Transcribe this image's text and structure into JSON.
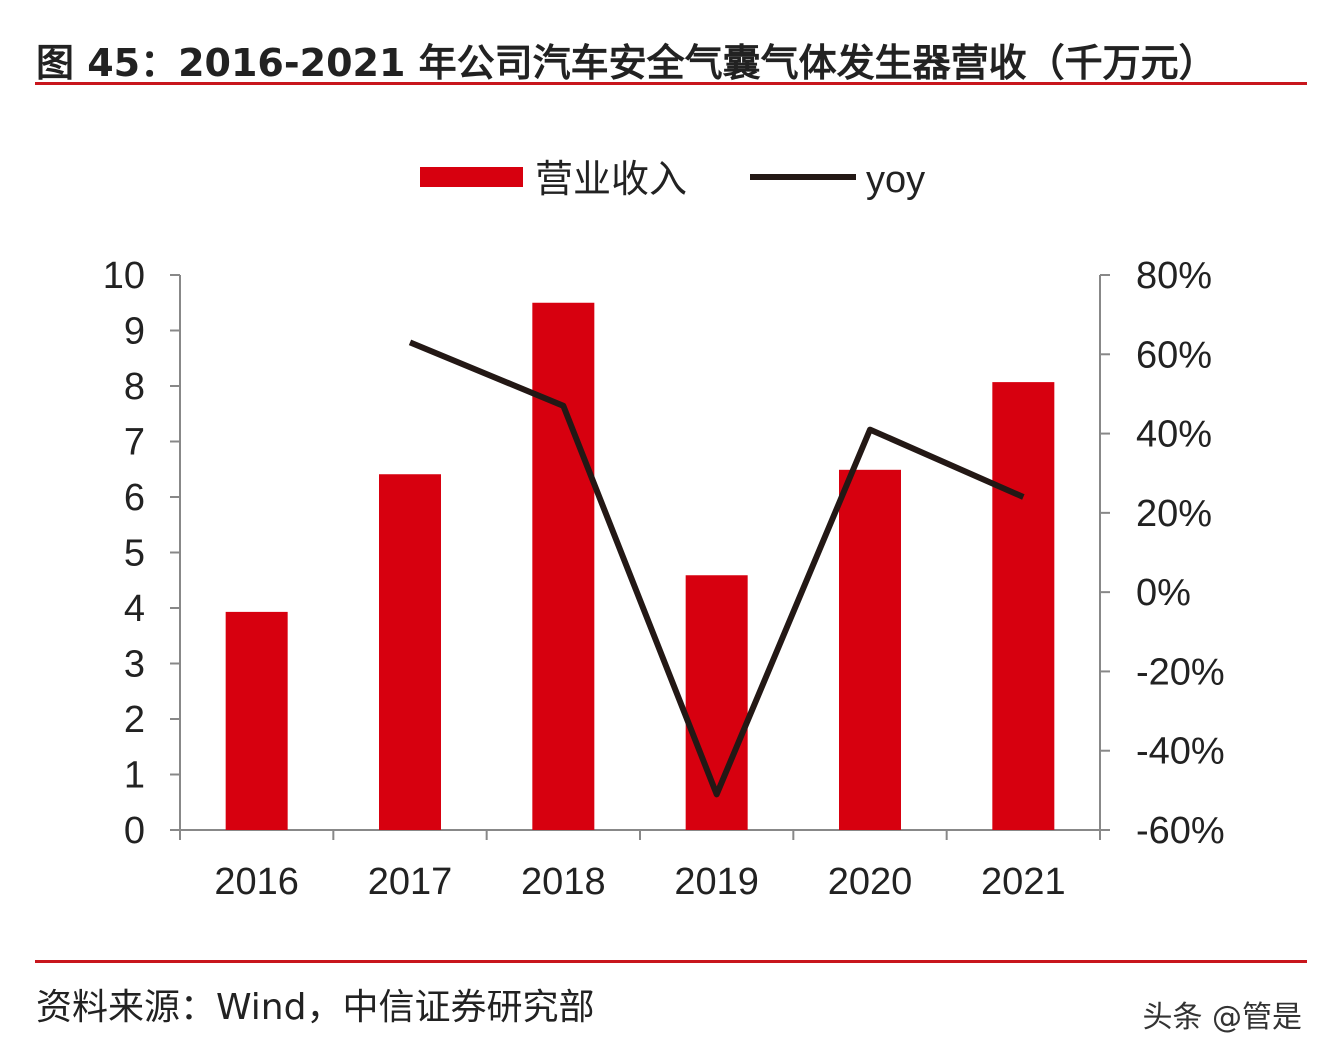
{
  "title": "图 45：2016-2021 年公司汽车安全气囊气体发生器营收（千万元）",
  "source": "资料来源：Wind，中信证券研究部",
  "watermark": "头条 @管是",
  "colors": {
    "bar": "#d7000f",
    "line": "#231815",
    "rule": "#c8161d"
  },
  "chart_data": {
    "type": "bar+line",
    "categories": [
      "2016",
      "2017",
      "2018",
      "2019",
      "2020",
      "2021"
    ],
    "legend_position": "top",
    "grid": false,
    "series": [
      {
        "name": "营业收入",
        "type": "bar",
        "axis": "left",
        "values": [
          3.93,
          6.41,
          9.5,
          4.59,
          6.49,
          8.07
        ]
      },
      {
        "name": "yoy",
        "type": "line",
        "axis": "right",
        "values": [
          null,
          63,
          47,
          -51,
          41,
          24
        ]
      }
    ],
    "y_left": {
      "ylim": [
        0,
        10
      ],
      "ticks": [
        "0",
        "1",
        "2",
        "3",
        "4",
        "5",
        "6",
        "7",
        "8",
        "9",
        "10"
      ]
    },
    "y_right": {
      "ylim": [
        -60,
        80
      ],
      "ticks": [
        "-60%",
        "-40%",
        "-20%",
        "0%",
        "20%",
        "40%",
        "60%",
        "80%"
      ]
    }
  }
}
